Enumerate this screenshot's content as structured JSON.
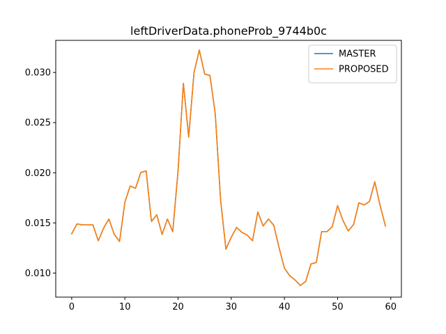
{
  "chart_data": {
    "type": "line",
    "title": "leftDriverData.phoneProb_9744b0c",
    "xlabel": "",
    "ylabel": "",
    "xlim": [
      -3,
      62
    ],
    "ylim": [
      0.0076,
      0.0332
    ],
    "x_ticks": [
      0,
      10,
      20,
      30,
      40,
      50,
      60
    ],
    "x_tick_labels": [
      "0",
      "10",
      "20",
      "30",
      "40",
      "50",
      "60"
    ],
    "y_ticks": [
      0.01,
      0.015,
      0.02,
      0.025,
      0.03
    ],
    "y_tick_labels": [
      "0.010",
      "0.015",
      "0.020",
      "0.025",
      "0.030"
    ],
    "grid": false,
    "legend_position": "top-right",
    "x": [
      0,
      1,
      2,
      3,
      4,
      5,
      6,
      7,
      8,
      9,
      10,
      11,
      12,
      13,
      14,
      15,
      16,
      17,
      18,
      19,
      20,
      21,
      22,
      23,
      24,
      25,
      26,
      27,
      28,
      29,
      30,
      31,
      32,
      33,
      34,
      35,
      36,
      37,
      38,
      39,
      40,
      41,
      42,
      43,
      44,
      45,
      46,
      47,
      48,
      49,
      50,
      51,
      52,
      53,
      54,
      55,
      56,
      57,
      58,
      59
    ],
    "series": [
      {
        "name": "MASTER",
        "color": "#1f77b4",
        "values": [
          0.01392,
          0.0149,
          0.0148,
          0.0148,
          0.0148,
          0.01322,
          0.01448,
          0.01539,
          0.01385,
          0.01315,
          0.01707,
          0.01868,
          0.01845,
          0.02003,
          0.02018,
          0.01514,
          0.01581,
          0.01385,
          0.01539,
          0.01413,
          0.02018,
          0.02892,
          0.02355,
          0.02998,
          0.03223,
          0.02984,
          0.0297,
          0.02585,
          0.01728,
          0.01238,
          0.01357,
          0.01455,
          0.01406,
          0.01378,
          0.01322,
          0.01609,
          0.01469,
          0.01539,
          0.01476,
          0.01252,
          0.01049,
          0.00973,
          0.00931,
          0.00875,
          0.00917,
          0.01091,
          0.01105,
          0.01413,
          0.01413,
          0.01462,
          0.01672,
          0.01525,
          0.0142,
          0.01483,
          0.017,
          0.01679,
          0.01714,
          0.0191,
          0.01672,
          0.01469
        ]
      },
      {
        "name": "PROPOSED",
        "color": "#ff7f0e",
        "values": [
          0.01392,
          0.0149,
          0.0148,
          0.0148,
          0.0148,
          0.01322,
          0.01448,
          0.01539,
          0.01385,
          0.01315,
          0.01707,
          0.01868,
          0.01845,
          0.02003,
          0.02018,
          0.01514,
          0.01581,
          0.01385,
          0.01539,
          0.01413,
          0.02018,
          0.02892,
          0.02355,
          0.02998,
          0.03223,
          0.02984,
          0.0297,
          0.02585,
          0.01728,
          0.01238,
          0.01357,
          0.01455,
          0.01406,
          0.01378,
          0.01322,
          0.01609,
          0.01469,
          0.01539,
          0.01476,
          0.01252,
          0.01049,
          0.00973,
          0.00931,
          0.00875,
          0.00917,
          0.01091,
          0.01105,
          0.01413,
          0.01413,
          0.01462,
          0.01672,
          0.01525,
          0.0142,
          0.01483,
          0.017,
          0.01679,
          0.01714,
          0.0191,
          0.01672,
          0.01469
        ]
      }
    ]
  }
}
